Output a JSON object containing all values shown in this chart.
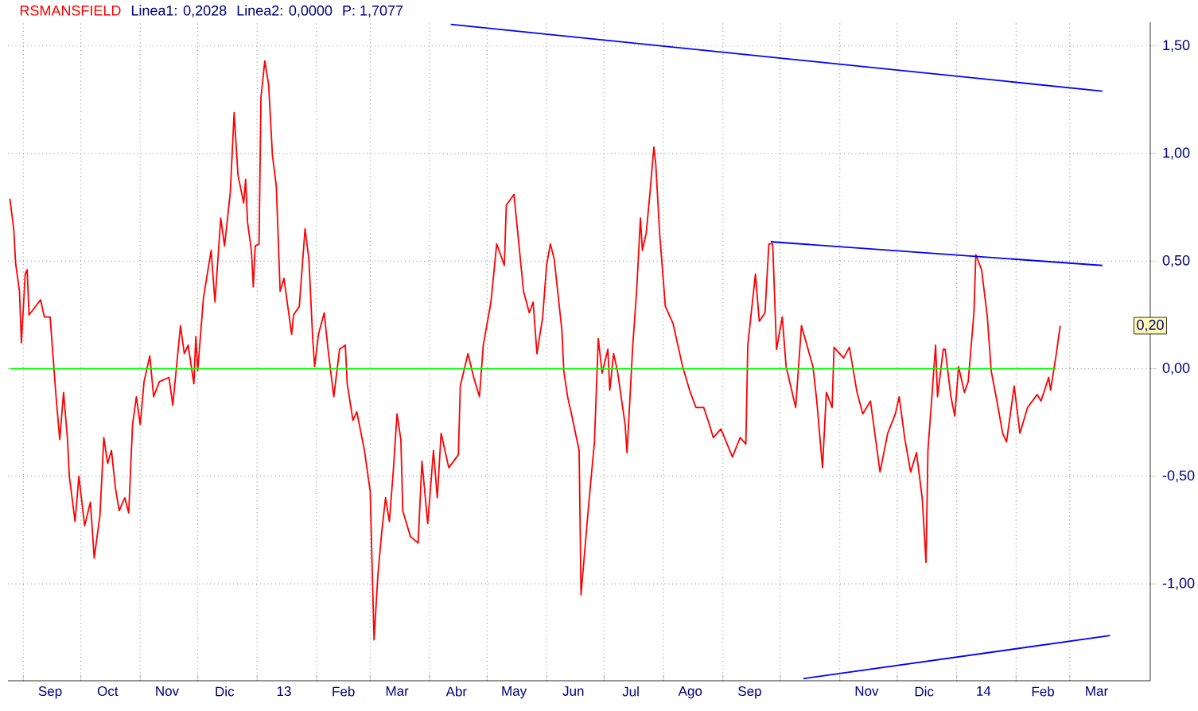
{
  "chart_data": {
    "type": "line",
    "title": "RSMANSFIELD",
    "annotations": [
      "Linea1: 0,2028",
      "Linea2: 0,0000",
      "P: 1,7077",
      {
        "text": "0,20",
        "y": 0.2
      }
    ],
    "grid": true,
    "xlim": [
      "2012-08-24",
      "2014-04-12"
    ],
    "xticks": [
      {
        "value": "2012-09-01",
        "label": null
      },
      {
        "value": "2012-09-15",
        "label": "Sep"
      },
      {
        "value": "2012-10-01",
        "label": null
      },
      {
        "value": "2012-10-15",
        "label": "Oct"
      },
      {
        "value": "2012-11-01",
        "label": null
      },
      {
        "value": "2012-11-15",
        "label": "Nov"
      },
      {
        "value": "2012-12-01",
        "label": null
      },
      {
        "value": "2012-12-15",
        "label": "Dic"
      },
      {
        "value": "2013-01-01",
        "label": null
      },
      {
        "value": "2013-01-15",
        "label": "13"
      },
      {
        "value": "2013-02-01",
        "label": null
      },
      {
        "value": "2013-02-15",
        "label": "Feb"
      },
      {
        "value": "2013-03-01",
        "label": null
      },
      {
        "value": "2013-03-15",
        "label": "Mar"
      },
      {
        "value": "2013-04-01",
        "label": null
      },
      {
        "value": "2013-04-15",
        "label": "Abr"
      },
      {
        "value": "2013-05-01",
        "label": null
      },
      {
        "value": "2013-05-15",
        "label": "May"
      },
      {
        "value": "2013-06-01",
        "label": null
      },
      {
        "value": "2013-06-15",
        "label": "Jun"
      },
      {
        "value": "2013-07-01",
        "label": null
      },
      {
        "value": "2013-07-15",
        "label": "Jul"
      },
      {
        "value": "2013-08-01",
        "label": null
      },
      {
        "value": "2013-08-15",
        "label": "Ago"
      },
      {
        "value": "2013-09-01",
        "label": null
      },
      {
        "value": "2013-09-15",
        "label": "Sep"
      },
      {
        "value": "2013-10-01",
        "label": null
      },
      {
        "value": "2013-11-01",
        "label": null
      },
      {
        "value": "2013-11-15",
        "label": "Nov"
      },
      {
        "value": "2013-12-01",
        "label": null
      },
      {
        "value": "2013-12-15",
        "label": "Dic"
      },
      {
        "value": "2014-01-01",
        "label": null
      },
      {
        "value": "2014-01-15",
        "label": "14"
      },
      {
        "value": "2014-02-01",
        "label": null
      },
      {
        "value": "2014-02-15",
        "label": "Feb"
      },
      {
        "value": "2014-03-01",
        "label": null
      },
      {
        "value": "2014-03-15",
        "label": "Mar"
      }
    ],
    "ylim": [
      -1.45,
      1.61
    ],
    "yticks": [
      {
        "value": -1,
        "label": "-1,00"
      },
      {
        "value": -0.5,
        "label": "-0,50"
      },
      {
        "value": 0,
        "label": "0,00"
      },
      {
        "value": 0.5,
        "label": "0,50"
      },
      {
        "value": 1,
        "label": "1,00"
      },
      {
        "value": 1.5,
        "label": "1,50"
      }
    ],
    "series": [
      {
        "color": "#ff0000",
        "x": [
          "2012-08-25",
          "2012-08-27",
          "2012-08-28",
          "2012-08-30",
          "2012-08-31",
          "2012-09-02",
          "2012-09-03",
          "2012-09-04",
          "2012-09-10",
          "2012-09-12",
          "2012-09-15",
          "2012-09-17",
          "2012-09-18",
          "2012-09-20",
          "2012-09-22",
          "2012-09-24",
          "2012-09-25",
          "2012-09-28",
          "2012-09-30",
          "2012-10-03",
          "2012-10-06",
          "2012-10-08",
          "2012-10-11",
          "2012-10-13",
          "2012-10-15",
          "2012-10-17",
          "2012-10-19",
          "2012-10-21",
          "2012-10-24",
          "2012-10-26",
          "2012-10-28",
          "2012-10-30",
          "2012-11-01",
          "2012-11-03",
          "2012-11-06",
          "2012-11-08",
          "2012-11-11",
          "2012-11-16",
          "2012-11-18",
          "2012-11-22",
          "2012-11-24",
          "2012-11-26",
          "2012-11-29",
          "2012-11-30",
          "2012-12-01",
          "2012-12-04",
          "2012-12-08",
          "2012-12-10",
          "2012-12-13",
          "2012-12-15",
          "2012-12-18",
          "2012-12-20",
          "2012-12-22",
          "2012-12-25",
          "2012-12-26",
          "2012-12-27",
          "2012-12-29",
          "2012-12-30",
          "2012-12-31",
          "2013-01-02",
          "2013-01-03",
          "2013-01-05",
          "2013-01-07",
          "2013-01-09",
          "2013-01-11",
          "2013-01-13",
          "2013-01-15",
          "2013-01-19",
          "2013-01-20",
          "2013-01-23",
          "2013-01-26",
          "2013-01-28",
          "2013-01-30",
          "2013-01-31",
          "2013-02-02",
          "2013-02-05",
          "2013-02-07",
          "2013-02-10",
          "2013-02-13",
          "2013-02-16",
          "2013-02-17",
          "2013-02-20",
          "2013-02-22",
          "2013-02-26",
          "2013-03-01",
          "2013-03-03",
          "2013-03-05",
          "2013-03-07",
          "2013-03-09",
          "2013-03-11",
          "2013-03-13",
          "2013-03-15",
          "2013-03-17",
          "2013-03-18",
          "2013-03-22",
          "2013-03-26",
          "2013-03-28",
          "2013-03-31",
          "2013-04-03",
          "2013-04-05",
          "2013-04-07",
          "2013-04-11",
          "2013-04-16",
          "2013-04-17",
          "2013-04-21",
          "2013-04-24",
          "2013-04-27",
          "2013-04-29",
          "2013-05-03",
          "2013-05-06",
          "2013-05-10",
          "2013-05-11",
          "2013-05-15",
          "2013-05-17",
          "2013-05-20",
          "2013-05-23",
          "2013-05-25",
          "2013-05-27",
          "2013-05-30",
          "2013-06-01",
          "2013-06-03",
          "2013-06-05",
          "2013-06-09",
          "2013-06-10",
          "2013-06-12",
          "2013-06-14",
          "2013-06-18",
          "2013-06-19",
          "2013-06-23",
          "2013-06-26",
          "2013-06-28",
          "2013-06-30",
          "2013-07-03",
          "2013-07-04",
          "2013-07-06",
          "2013-07-08",
          "2013-07-12",
          "2013-07-13",
          "2013-07-16",
          "2013-07-18",
          "2013-07-20",
          "2013-07-21",
          "2013-07-23",
          "2013-07-25",
          "2013-07-27",
          "2013-07-28",
          "2013-07-30",
          "2013-08-02",
          "2013-08-06",
          "2013-08-11",
          "2013-08-15",
          "2013-08-18",
          "2013-08-22",
          "2013-08-25",
          "2013-08-27",
          "2013-08-31",
          "2013-09-06",
          "2013-09-10",
          "2013-09-13",
          "2013-09-14",
          "2013-09-18",
          "2013-09-20",
          "2013-09-23",
          "2013-09-25",
          "2013-09-27",
          "2013-09-29",
          "2013-10-02",
          "2013-10-04",
          "2013-10-09",
          "2013-10-12",
          "2013-10-18",
          "2013-10-20",
          "2013-10-23",
          "2013-10-25",
          "2013-10-28",
          "2013-10-29",
          "2013-11-03",
          "2013-11-06",
          "2013-11-10",
          "2013-11-13",
          "2013-11-17",
          "2013-11-22",
          "2013-11-26",
          "2013-11-30",
          "2013-12-02",
          "2013-12-05",
          "2013-12-08",
          "2013-12-11",
          "2013-12-14",
          "2013-12-16",
          "2013-12-17",
          "2013-12-21",
          "2013-12-22",
          "2013-12-25",
          "2013-12-26",
          "2013-12-29",
          "2013-12-31",
          "2014-01-02",
          "2014-01-05",
          "2014-01-07",
          "2014-01-10",
          "2014-01-11",
          "2014-01-14",
          "2014-01-17",
          "2014-01-19",
          "2014-01-22",
          "2014-01-25",
          "2014-01-27",
          "2014-01-31",
          "2014-02-03",
          "2014-02-07",
          "2014-02-12",
          "2014-02-14",
          "2014-02-18",
          "2014-02-19",
          "2014-02-22",
          "2014-02-24"
        ],
        "values": [
          0.79,
          0.65,
          0.49,
          0.36,
          0.12,
          0.44,
          0.46,
          0.25,
          0.32,
          0.24,
          0.24,
          0.0,
          -0.12,
          -0.33,
          -0.11,
          -0.32,
          -0.5,
          -0.71,
          -0.5,
          -0.73,
          -0.62,
          -0.88,
          -0.68,
          -0.32,
          -0.44,
          -0.38,
          -0.55,
          -0.66,
          -0.6,
          -0.67,
          -0.26,
          -0.13,
          -0.26,
          -0.06,
          0.06,
          -0.13,
          -0.06,
          -0.04,
          -0.17,
          0.2,
          0.07,
          0.11,
          -0.07,
          0.15,
          -0.01,
          0.33,
          0.55,
          0.31,
          0.7,
          0.57,
          0.82,
          1.19,
          0.9,
          0.77,
          0.88,
          0.68,
          0.55,
          0.38,
          0.57,
          0.58,
          1.26,
          1.43,
          1.32,
          0.99,
          0.85,
          0.36,
          0.42,
          0.16,
          0.25,
          0.29,
          0.65,
          0.51,
          0.14,
          0.01,
          0.16,
          0.26,
          0.09,
          -0.13,
          0.09,
          0.11,
          -0.07,
          -0.24,
          -0.2,
          -0.38,
          -0.57,
          -1.26,
          -0.96,
          -0.76,
          -0.6,
          -0.71,
          -0.48,
          -0.21,
          -0.33,
          -0.66,
          -0.78,
          -0.81,
          -0.43,
          -0.72,
          -0.38,
          -0.6,
          -0.3,
          -0.46,
          -0.4,
          -0.08,
          0.07,
          -0.04,
          -0.13,
          0.11,
          0.31,
          0.58,
          0.48,
          0.76,
          0.81,
          0.63,
          0.36,
          0.26,
          0.31,
          0.07,
          0.24,
          0.48,
          0.58,
          0.51,
          0.18,
          -0.01,
          -0.13,
          -0.21,
          -0.38,
          -1.05,
          -0.63,
          -0.34,
          0.14,
          -0.02,
          0.09,
          -0.1,
          0.07,
          -0.01,
          -0.26,
          -0.39,
          0.11,
          0.36,
          0.7,
          0.55,
          0.63,
          0.82,
          1.03,
          0.95,
          0.63,
          0.29,
          0.21,
          0.01,
          -0.11,
          -0.18,
          -0.18,
          -0.26,
          -0.32,
          -0.28,
          -0.41,
          -0.32,
          -0.35,
          0.11,
          0.44,
          0.22,
          0.26,
          0.58,
          0.58,
          0.09,
          0.24,
          0.01,
          -0.18,
          0.2,
          0.01,
          -0.15,
          -0.46,
          -0.11,
          -0.18,
          0.1,
          0.05,
          0.1,
          -0.11,
          -0.21,
          -0.15,
          -0.48,
          -0.3,
          -0.21,
          -0.13,
          -0.33,
          -0.48,
          -0.39,
          -0.6,
          -0.9,
          -0.38,
          0.11,
          -0.13,
          0.09,
          0.09,
          -0.13,
          -0.22,
          0.01,
          -0.11,
          -0.06,
          0.26,
          0.53,
          0.46,
          0.24,
          -0.01,
          -0.15,
          -0.3,
          -0.34,
          -0.08,
          -0.3,
          -0.18,
          -0.12,
          -0.15,
          -0.04,
          -0.1,
          0.07,
          0.2
        ]
      },
      {
        "color": "#0000ff",
        "x": [
          "2013-04-12",
          "2014-03-18"
        ],
        "values": [
          1.6,
          1.29
        ]
      },
      {
        "color": "#0000ff",
        "x": [
          "2013-09-26",
          "2014-03-18"
        ],
        "values": [
          0.59,
          0.48
        ]
      },
      {
        "color": "#0000ff",
        "x": [
          "2013-10-13",
          "2014-03-22"
        ],
        "values": [
          -1.44,
          -1.24
        ]
      },
      {
        "color": "#00ff00",
        "x": [
          "2012-08-25",
          "2014-02-22"
        ],
        "values": [
          0,
          0
        ]
      }
    ]
  }
}
